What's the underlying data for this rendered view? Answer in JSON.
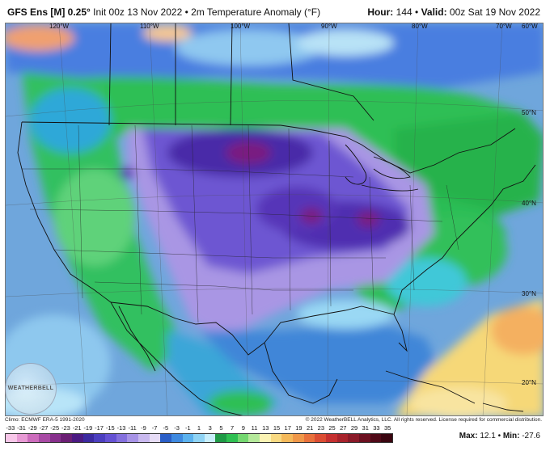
{
  "header": {
    "model": "GFS Ens [M] 0.25°",
    "init": "Init 00z 13 Nov 2022",
    "separator": " • ",
    "field": "2m Temperature Anomaly (°F)",
    "hour_label": "Hour:",
    "hour_value": "144",
    "valid_label": "Valid:",
    "valid_value": "00z Sat 19 Nov 2022"
  },
  "map": {
    "longitude_labels": [
      "120°W",
      "110°W",
      "100°W",
      "90°W",
      "80°W",
      "70°W",
      "60°W"
    ],
    "latitude_labels": [
      "50°N",
      "40°N",
      "30°N",
      "20°N"
    ],
    "colors": {
      "ocean_base": "#7fb2e0",
      "cold_extreme": "#7a1060",
      "purple": "#5a3ab8",
      "violet": "#8a6ad8",
      "lavender": "#c8b8ec",
      "cyan": "#54c8e8",
      "blue": "#3a70d8",
      "green": "#2ec05a",
      "light_green": "#8fe08a",
      "yellow": "#f6e27a",
      "orange": "#f5a060",
      "border": "#111111"
    }
  },
  "logo": {
    "text": "WEATHERBELL"
  },
  "footer": {
    "climo": "Climo: ECMWF ERA-5 1991-2020",
    "copyright": "© 2022 WeatherBELL Analytics, LLC. All rights reserved. License required for commercial distribution."
  },
  "colorbar": {
    "labels": [
      "-33",
      "-31",
      "-29",
      "-27",
      "-25",
      "-23",
      "-21",
      "-19",
      "-17",
      "-15",
      "-13",
      "-11",
      "-9",
      "-7",
      "-5",
      "-3",
      "-1",
      "1",
      "3",
      "5",
      "7",
      "9",
      "11",
      "13",
      "15",
      "17",
      "19",
      "21",
      "23",
      "25",
      "27",
      "29",
      "31",
      "33",
      "35"
    ],
    "colors": [
      "#f7c6e8",
      "#e79ad4",
      "#cc6cbc",
      "#a84aa4",
      "#87308c",
      "#6b1f74",
      "#4b1a82",
      "#3c2aa0",
      "#4c3fbf",
      "#6552d3",
      "#8470dd",
      "#a793e6",
      "#c9b9ef",
      "#e6dcf6",
      "#2b5fc7",
      "#3f8ae0",
      "#5cb2ee",
      "#8fd3f4",
      "#c8eefb",
      "#1f9a46",
      "#2fbf52",
      "#74d770",
      "#b5e99b",
      "#fbf3b4",
      "#f8d982",
      "#f4b95b",
      "#ef9749",
      "#e8713c",
      "#db4d33",
      "#c53030",
      "#a8232c",
      "#8a1a28",
      "#6c1020",
      "#500a18",
      "#3a0610"
    ]
  },
  "stats": {
    "max_label": "Max:",
    "max_value": "12.1",
    "sep": " • ",
    "min_label": "Min:",
    "min_value": "-27.6"
  }
}
